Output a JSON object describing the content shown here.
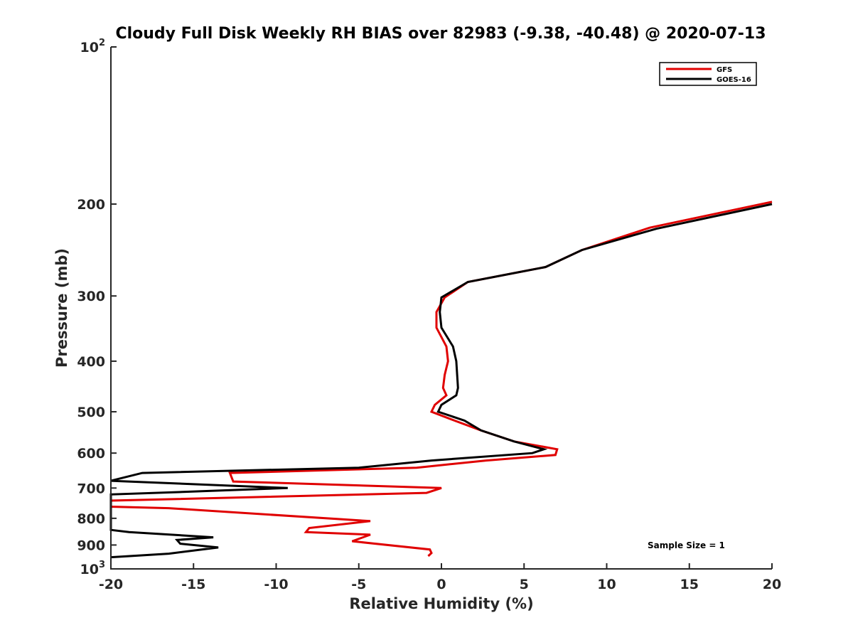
{
  "chart_data": {
    "type": "line",
    "title": "Cloudy Full Disk Weekly RH BIAS over 82983 (-9.38, -40.48) @ 2020-07-13",
    "xlabel": "Relative Humidity (%)",
    "ylabel": "Pressure (mb)",
    "xlim": [
      -20,
      20
    ],
    "ylim": [
      100,
      1000
    ],
    "y_scale": "log",
    "y_reversed": true,
    "grid": false,
    "legend_position": "top-right",
    "x_ticks": [
      "-20",
      "-15",
      "-10",
      "-5",
      "0",
      "5",
      "10",
      "15",
      "20"
    ],
    "y_ticks": [
      {
        "value": 100,
        "base": "10",
        "exp": "2"
      },
      {
        "value": 200,
        "label": "200"
      },
      {
        "value": 300,
        "label": "300"
      },
      {
        "value": 400,
        "label": "400"
      },
      {
        "value": 500,
        "label": "500"
      },
      {
        "value": 600,
        "label": "600"
      },
      {
        "value": 700,
        "label": "700"
      },
      {
        "value": 800,
        "label": "800"
      },
      {
        "value": 900,
        "label": "900"
      },
      {
        "value": 1000,
        "base": "10",
        "exp": "3"
      }
    ],
    "series": [
      {
        "name": "GFS",
        "color": "#e00000",
        "points": [
          [
            20.0,
            198
          ],
          [
            12.6,
            222
          ],
          [
            8.5,
            245
          ],
          [
            6.3,
            264
          ],
          [
            1.6,
            282
          ],
          [
            0.2,
            302
          ],
          [
            -0.3,
            322
          ],
          [
            -0.3,
            345
          ],
          [
            0.3,
            375
          ],
          [
            0.4,
            400
          ],
          [
            0.2,
            425
          ],
          [
            0.1,
            450
          ],
          [
            0.3,
            465
          ],
          [
            -0.4,
            485
          ],
          [
            -0.6,
            500
          ],
          [
            0.8,
            520
          ],
          [
            2.4,
            543
          ],
          [
            4.4,
            570
          ],
          [
            7.0,
            590
          ],
          [
            6.9,
            605
          ],
          [
            2.7,
            620
          ],
          [
            -1.5,
            640
          ],
          [
            -12.8,
            655
          ],
          [
            -12.6,
            680
          ],
          [
            0.0,
            700
          ],
          [
            -0.9,
            715
          ],
          [
            -20.0,
            740
          ],
          [
            -20.0,
            760
          ],
          [
            -16.5,
            765
          ],
          [
            -4.3,
            810
          ],
          [
            -8.0,
            835
          ],
          [
            -8.2,
            850
          ],
          [
            -4.3,
            860
          ],
          [
            -5.4,
            885
          ],
          [
            -0.7,
            918
          ],
          [
            -0.6,
            932
          ],
          [
            -0.8,
            945
          ]
        ]
      },
      {
        "name": "GOES-16",
        "color": "#000000",
        "points": [
          [
            20.0,
            200
          ],
          [
            13.0,
            223
          ],
          [
            8.5,
            245
          ],
          [
            6.3,
            264
          ],
          [
            1.6,
            282
          ],
          [
            0.0,
            302
          ],
          [
            -0.1,
            322
          ],
          [
            0.0,
            345
          ],
          [
            0.7,
            375
          ],
          [
            0.9,
            400
          ],
          [
            1.0,
            450
          ],
          [
            0.9,
            465
          ],
          [
            0.0,
            485
          ],
          [
            -0.2,
            500
          ],
          [
            1.4,
            520
          ],
          [
            2.4,
            543
          ],
          [
            4.4,
            570
          ],
          [
            6.2,
            590
          ],
          [
            5.5,
            600
          ],
          [
            -0.6,
            620
          ],
          [
            -5.0,
            640
          ],
          [
            -18.1,
            655
          ],
          [
            -20.0,
            678
          ],
          [
            -9.3,
            700
          ],
          [
            -14.5,
            710
          ],
          [
            -20.0,
            720
          ],
          [
            -20.0,
            842
          ],
          [
            -18.9,
            850
          ],
          [
            -13.8,
            870
          ],
          [
            -16.0,
            880
          ],
          [
            -15.8,
            895
          ],
          [
            -13.5,
            910
          ],
          [
            -16.5,
            935
          ],
          [
            -20.0,
            950
          ]
        ]
      }
    ],
    "annotations": [
      "Sample Size = 1"
    ]
  }
}
